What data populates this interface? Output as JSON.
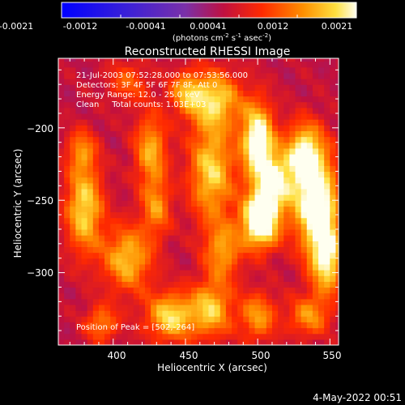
{
  "colorbar": {
    "ticks": [
      "-0.0021",
      "-0.0012",
      "-0.00041",
      "0.00041",
      "0.0012",
      "0.0021"
    ],
    "unit_label": "(photons cm",
    "unit_sup1": "-2",
    "unit_mid": " s",
    "unit_sup2": "-1",
    "unit_end": " asec",
    "unit_sup3": "-2",
    "unit_close": ")"
  },
  "chart_data": {
    "type": "heatmap",
    "title": "Reconstructed RHESSI Image",
    "xlabel": "Heliocentric X (arcsec)",
    "ylabel": "Heliocentric Y (arcsec)",
    "xlim": [
      362,
      556
    ],
    "ylim": [
      -350,
      -152
    ],
    "x_ticks": [
      400,
      450,
      500,
      550
    ],
    "x_tick_labels": [
      "400",
      "450",
      "500",
      "550"
    ],
    "y_ticks": [
      -200,
      -250,
      -300
    ],
    "y_tick_labels": [
      "−200",
      "−250",
      "−300"
    ],
    "colormap_range": [
      -0.0021,
      0.0021
    ],
    "annotations": [
      "21-Jul-2003 07:52:28.000 to 07:53:56.000",
      "Detectors: 3F 4F 5F 6F 7F 8F, Att 0",
      "Energy Range: 12.0 - 25.0 keV",
      "Clean     Total counts: 1.03E+03"
    ],
    "peak_label": "Position of Peak = [502,-264]",
    "peak": [
      502,
      -264
    ]
  },
  "footer": {
    "date": "4-May-2022 00:51"
  }
}
